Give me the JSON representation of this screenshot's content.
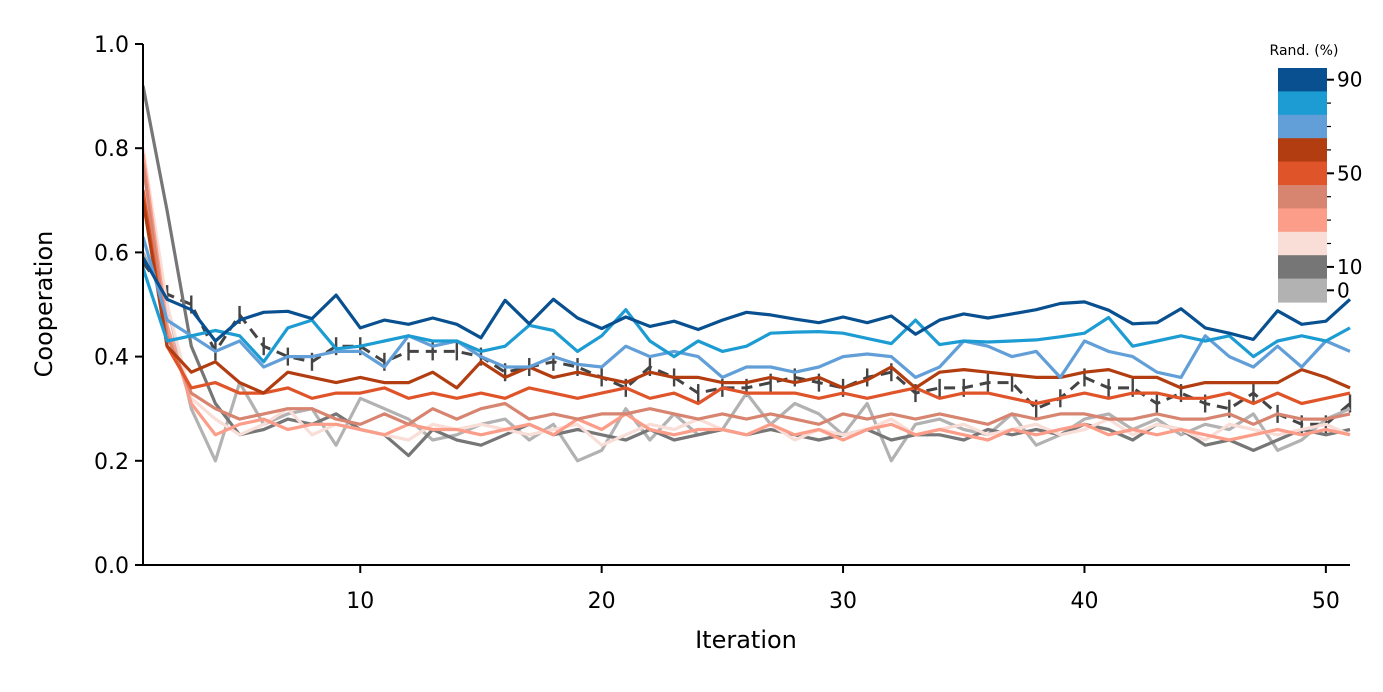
{
  "chart_data": {
    "type": "line",
    "xlabel": "Iteration",
    "ylabel": "Cooperation",
    "xlim": [
      1,
      51
    ],
    "ylim": [
      0.0,
      1.0
    ],
    "xticks": [
      10,
      20,
      30,
      40,
      50
    ],
    "yticks": [
      "0.0",
      "0.2",
      "0.4",
      "0.6",
      "0.8",
      "1.0"
    ],
    "grid": false,
    "legend": {
      "type": "colorbar",
      "title": "Rand. (%)",
      "placement": "top-right",
      "swatches": [
        "#08508f",
        "#1c9cd2",
        "#629fd8",
        "#b23d10",
        "#e0542a",
        "#d78470",
        "#fc9d89",
        "#f9ddd7",
        "#767676",
        "#b2b2b2"
      ],
      "labels": [
        {
          "text": "90",
          "at": 0
        },
        {
          "text": "50",
          "at": 4
        },
        {
          "text": "10",
          "at": 8
        },
        {
          "text": "0",
          "at": 9
        }
      ]
    },
    "x": [
      1,
      2,
      3,
      4,
      5,
      6,
      7,
      8,
      9,
      10,
      11,
      12,
      13,
      14,
      15,
      16,
      17,
      18,
      19,
      20,
      21,
      22,
      23,
      24,
      25,
      26,
      27,
      28,
      29,
      30,
      31,
      32,
      33,
      34,
      35,
      36,
      37,
      38,
      39,
      40,
      41,
      42,
      43,
      44,
      45,
      46,
      47,
      48,
      49,
      50,
      51
    ],
    "series": [
      {
        "color": "#08508f",
        "values": [
          0.59,
          0.51,
          0.49,
          0.43,
          0.47,
          0.485,
          0.487,
          0.473,
          0.518,
          0.455,
          0.47,
          0.462,
          0.474,
          0.462,
          0.436,
          0.508,
          0.463,
          0.51,
          0.474,
          0.454,
          0.476,
          0.458,
          0.468,
          0.452,
          0.47,
          0.485,
          0.48,
          0.472,
          0.465,
          0.476,
          0.465,
          0.478,
          0.443,
          0.47,
          0.482,
          0.474,
          0.482,
          0.49,
          0.502,
          0.505,
          0.489,
          0.463,
          0.465,
          0.492,
          0.455,
          0.445,
          0.433,
          0.488,
          0.462,
          0.468,
          0.51
        ]
      },
      {
        "color": "#1c9cd2",
        "values": [
          0.57,
          0.43,
          0.44,
          0.45,
          0.44,
          0.39,
          0.455,
          0.47,
          0.415,
          0.42,
          0.43,
          0.44,
          0.43,
          0.43,
          0.41,
          0.42,
          0.46,
          0.45,
          0.41,
          0.44,
          0.49,
          0.43,
          0.4,
          0.43,
          0.41,
          0.42,
          0.445,
          0.447,
          0.448,
          0.445,
          0.435,
          0.425,
          0.47,
          0.423,
          0.43,
          0.428,
          0.43,
          0.432,
          0.438,
          0.445,
          0.475,
          0.42,
          0.43,
          0.44,
          0.43,
          0.44,
          0.4,
          0.43,
          0.44,
          0.43,
          0.455
        ]
      },
      {
        "color": "#629fd8",
        "values": [
          0.63,
          0.47,
          0.44,
          0.41,
          0.43,
          0.38,
          0.4,
          0.4,
          0.41,
          0.41,
          0.38,
          0.44,
          0.42,
          0.43,
          0.4,
          0.38,
          0.38,
          0.4,
          0.385,
          0.38,
          0.42,
          0.4,
          0.41,
          0.4,
          0.36,
          0.38,
          0.38,
          0.37,
          0.38,
          0.4,
          0.405,
          0.4,
          0.36,
          0.38,
          0.43,
          0.42,
          0.4,
          0.41,
          0.36,
          0.43,
          0.41,
          0.4,
          0.37,
          0.36,
          0.44,
          0.4,
          0.38,
          0.42,
          0.38,
          0.43,
          0.41
        ]
      },
      {
        "color": "#b23d10",
        "values": [
          0.7,
          0.42,
          0.37,
          0.39,
          0.35,
          0.33,
          0.37,
          0.36,
          0.35,
          0.36,
          0.35,
          0.35,
          0.37,
          0.34,
          0.39,
          0.36,
          0.38,
          0.36,
          0.37,
          0.36,
          0.35,
          0.37,
          0.36,
          0.36,
          0.35,
          0.35,
          0.36,
          0.35,
          0.36,
          0.34,
          0.355,
          0.38,
          0.34,
          0.37,
          0.375,
          0.37,
          0.365,
          0.36,
          0.36,
          0.37,
          0.375,
          0.36,
          0.36,
          0.34,
          0.35,
          0.35,
          0.35,
          0.35,
          0.375,
          0.36,
          0.34
        ]
      },
      {
        "color": "#e0542a",
        "values": [
          0.72,
          0.42,
          0.34,
          0.35,
          0.33,
          0.33,
          0.34,
          0.32,
          0.33,
          0.33,
          0.34,
          0.32,
          0.33,
          0.32,
          0.33,
          0.32,
          0.34,
          0.33,
          0.32,
          0.33,
          0.34,
          0.32,
          0.33,
          0.31,
          0.34,
          0.33,
          0.33,
          0.33,
          0.32,
          0.33,
          0.32,
          0.33,
          0.34,
          0.32,
          0.33,
          0.33,
          0.32,
          0.31,
          0.32,
          0.33,
          0.32,
          0.33,
          0.33,
          0.32,
          0.32,
          0.33,
          0.31,
          0.33,
          0.31,
          0.32,
          0.33
        ]
      },
      {
        "color": "#d78470",
        "values": [
          0.77,
          0.44,
          0.33,
          0.3,
          0.28,
          0.29,
          0.3,
          0.3,
          0.28,
          0.27,
          0.29,
          0.27,
          0.3,
          0.28,
          0.3,
          0.31,
          0.28,
          0.29,
          0.28,
          0.29,
          0.29,
          0.3,
          0.29,
          0.28,
          0.29,
          0.28,
          0.29,
          0.28,
          0.27,
          0.29,
          0.28,
          0.29,
          0.28,
          0.29,
          0.28,
          0.27,
          0.29,
          0.28,
          0.29,
          0.29,
          0.28,
          0.28,
          0.29,
          0.28,
          0.28,
          0.29,
          0.27,
          0.29,
          0.28,
          0.28,
          0.29
        ]
      },
      {
        "color": "#fc9d89",
        "values": [
          0.79,
          0.46,
          0.31,
          0.25,
          0.27,
          0.28,
          0.26,
          0.27,
          0.27,
          0.26,
          0.25,
          0.27,
          0.26,
          0.26,
          0.25,
          0.26,
          0.27,
          0.25,
          0.28,
          0.26,
          0.29,
          0.26,
          0.25,
          0.26,
          0.26,
          0.25,
          0.27,
          0.25,
          0.26,
          0.24,
          0.26,
          0.27,
          0.25,
          0.26,
          0.25,
          0.24,
          0.26,
          0.25,
          0.26,
          0.27,
          0.25,
          0.26,
          0.25,
          0.26,
          0.25,
          0.24,
          0.25,
          0.26,
          0.25,
          0.26,
          0.25
        ]
      },
      {
        "color": "#f9ddd7",
        "values": [
          0.8,
          0.5,
          0.32,
          0.28,
          0.25,
          0.27,
          0.3,
          0.25,
          0.27,
          0.26,
          0.25,
          0.24,
          0.27,
          0.26,
          0.27,
          0.26,
          0.25,
          0.26,
          0.27,
          0.23,
          0.25,
          0.27,
          0.26,
          0.28,
          0.26,
          0.25,
          0.27,
          0.24,
          0.26,
          0.25,
          0.26,
          0.28,
          0.25,
          0.26,
          0.27,
          0.25,
          0.26,
          0.27,
          0.25,
          0.26,
          0.28,
          0.25,
          0.27,
          0.26,
          0.24,
          0.27,
          0.26,
          0.25,
          0.26,
          0.27,
          0.25
        ]
      },
      {
        "color": "#767676",
        "values": [
          0.92,
          0.68,
          0.42,
          0.31,
          0.25,
          0.26,
          0.28,
          0.27,
          0.29,
          0.26,
          0.25,
          0.21,
          0.26,
          0.24,
          0.23,
          0.25,
          0.27,
          0.25,
          0.26,
          0.25,
          0.24,
          0.26,
          0.24,
          0.25,
          0.26,
          0.25,
          0.26,
          0.25,
          0.24,
          0.25,
          0.26,
          0.24,
          0.25,
          0.25,
          0.24,
          0.26,
          0.25,
          0.26,
          0.25,
          0.27,
          0.26,
          0.24,
          0.27,
          0.26,
          0.23,
          0.24,
          0.22,
          0.24,
          0.26,
          0.25,
          0.26
        ]
      },
      {
        "color": "#b2b2b2",
        "values": [
          0.6,
          0.5,
          0.3,
          0.2,
          0.35,
          0.27,
          0.29,
          0.3,
          0.23,
          0.32,
          0.3,
          0.28,
          0.24,
          0.25,
          0.27,
          0.28,
          0.24,
          0.27,
          0.2,
          0.22,
          0.3,
          0.24,
          0.29,
          0.25,
          0.26,
          0.33,
          0.27,
          0.31,
          0.29,
          0.25,
          0.31,
          0.2,
          0.27,
          0.28,
          0.26,
          0.25,
          0.29,
          0.23,
          0.25,
          0.28,
          0.29,
          0.26,
          0.28,
          0.25,
          0.27,
          0.26,
          0.29,
          0.22,
          0.24,
          0.28,
          0.3
        ]
      },
      {
        "color": "#444444",
        "dashed": true,
        "errorbars": true,
        "values": [
          0.58,
          0.52,
          0.5,
          0.41,
          0.48,
          0.42,
          0.4,
          0.39,
          0.42,
          0.42,
          0.39,
          0.41,
          0.41,
          0.41,
          0.4,
          0.37,
          0.38,
          0.39,
          0.38,
          0.36,
          0.34,
          0.38,
          0.36,
          0.33,
          0.34,
          0.34,
          0.35,
          0.36,
          0.35,
          0.34,
          0.36,
          0.37,
          0.33,
          0.34,
          0.34,
          0.35,
          0.35,
          0.3,
          0.32,
          0.36,
          0.34,
          0.34,
          0.31,
          0.33,
          0.31,
          0.3,
          0.33,
          0.29,
          0.27,
          0.27,
          0.31
        ]
      }
    ]
  }
}
